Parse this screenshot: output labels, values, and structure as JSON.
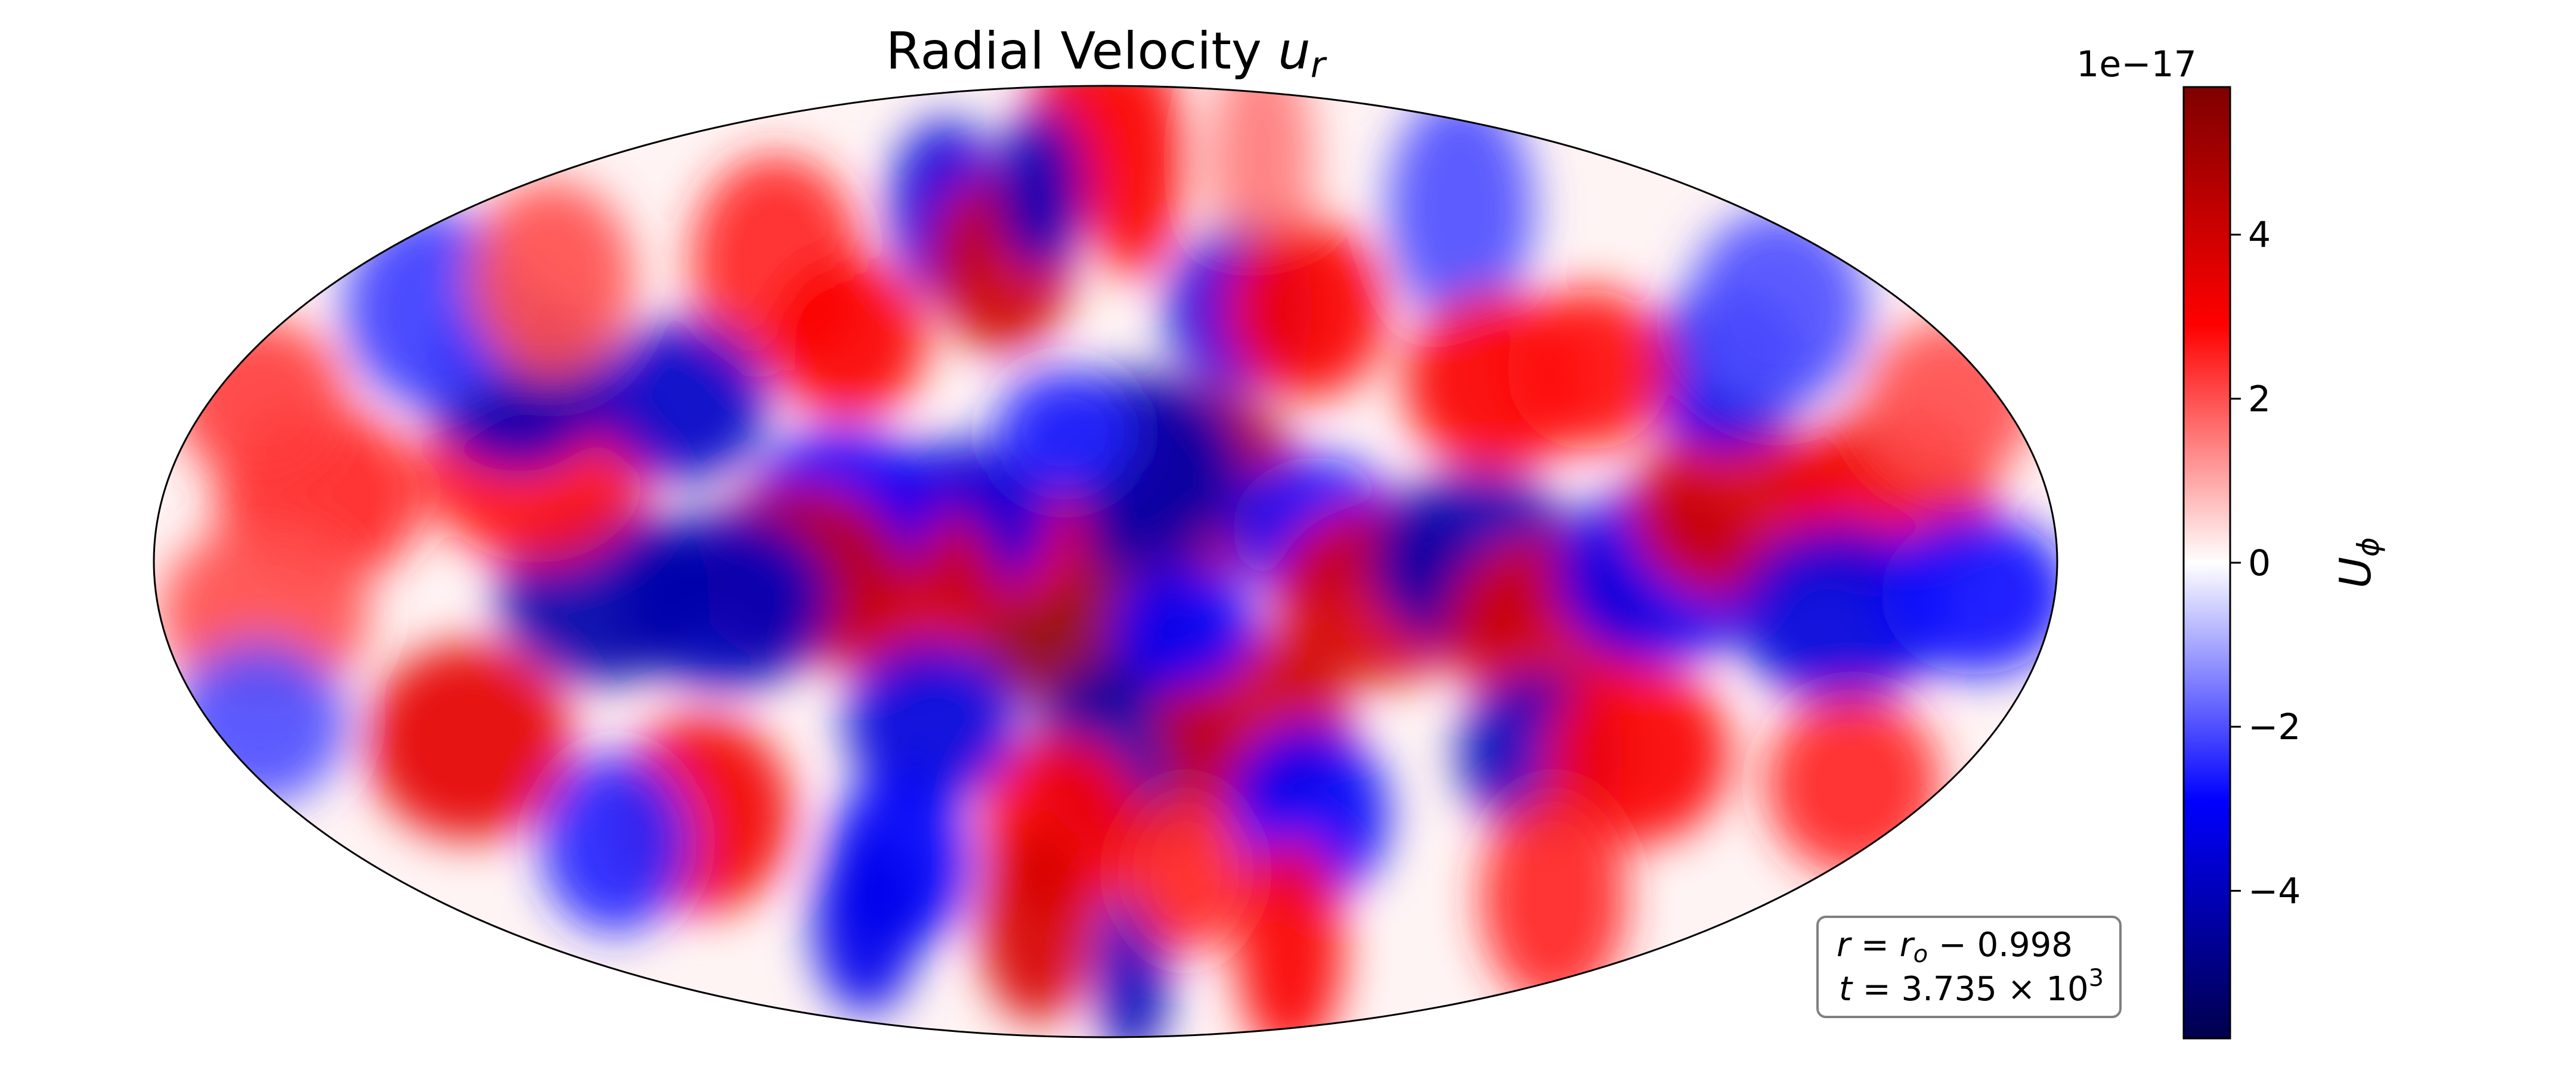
{
  "chart_data": {
    "type": "heatmap",
    "projection": "mollweide",
    "title": "Radial Velocity",
    "title_symbol": "u",
    "title_subscript": "r",
    "colormap": "seismic",
    "colormap_colors": [
      "#00004c",
      "#0000ff",
      "#ffffff",
      "#ff0000",
      "#7f0000"
    ],
    "colorbar": {
      "label": "U",
      "label_subscript": "ϕ",
      "scale_label": "1e−17",
      "vmin": -5.8,
      "vmax": 5.8,
      "ticks": [
        -4,
        -2,
        0,
        2,
        4
      ],
      "tick_labels": [
        "−4",
        "−2",
        "0",
        "2",
        "4"
      ]
    },
    "field_features": [
      {
        "lon": -4,
        "lat": -8,
        "value": 5.4,
        "size": 22
      },
      {
        "lon": 16,
        "lat": 12,
        "value": 4.6,
        "size": 22
      },
      {
        "lon": 5,
        "lat": 14,
        "value": -4.2,
        "size": 22
      },
      {
        "lon": 6,
        "lat": -30,
        "value": -4.4,
        "size": 22
      },
      {
        "lon": -20,
        "lat": 4,
        "value": 3.2,
        "size": 16
      },
      {
        "lon": -28,
        "lat": 6,
        "value": -3.4,
        "size": 18
      },
      {
        "lon": -40,
        "lat": -4,
        "value": 3.8,
        "size": 20
      },
      {
        "lon": -50,
        "lat": 8,
        "value": -3.0,
        "size": 18
      },
      {
        "lon": -58,
        "lat": -2,
        "value": 4.2,
        "size": 20
      },
      {
        "lon": -72,
        "lat": -6,
        "value": -4.0,
        "size": 20
      },
      {
        "lon": -95,
        "lat": -5,
        "value": -4.3,
        "size": 20
      },
      {
        "lon": -110,
        "lat": 15,
        "value": 2.8,
        "size": 22
      },
      {
        "lon": -120,
        "lat": 28,
        "value": -4.0,
        "size": 20
      },
      {
        "lon": -130,
        "lat": -28,
        "value": 3.5,
        "size": 22
      },
      {
        "lon": -150,
        "lat": 10,
        "value": 2.5,
        "size": 20
      },
      {
        "lon": -160,
        "lat": -8,
        "value": 2.0,
        "size": 20
      },
      {
        "lon": -80,
        "lat": 48,
        "value": 2.5,
        "size": 24
      },
      {
        "lon": -45,
        "lat": 58,
        "value": -3.5,
        "size": 20
      },
      {
        "lon": -25,
        "lat": 48,
        "value": 4.0,
        "size": 20
      },
      {
        "lon": -15,
        "lat": 75,
        "value": 3.2,
        "size": 22
      },
      {
        "lon": -20,
        "lat": 62,
        "value": -4.0,
        "size": 18
      },
      {
        "lon": 10,
        "lat": 68,
        "value": 3.0,
        "size": 26
      },
      {
        "lon": 55,
        "lat": 68,
        "value": 1.5,
        "size": 26
      },
      {
        "lon": 100,
        "lat": 58,
        "value": -2.0,
        "size": 26
      },
      {
        "lon": 30,
        "lat": 40,
        "value": -3.5,
        "size": 18
      },
      {
        "lon": 45,
        "lat": 40,
        "value": 3.0,
        "size": 20
      },
      {
        "lon": -55,
        "lat": 35,
        "value": 3.0,
        "size": 18
      },
      {
        "lon": -85,
        "lat": 25,
        "value": -3.8,
        "size": 18
      },
      {
        "lon": 40,
        "lat": 5,
        "value": -2.8,
        "size": 16
      },
      {
        "lon": 52,
        "lat": -5,
        "value": 3.8,
        "size": 20
      },
      {
        "lon": 70,
        "lat": 0,
        "value": -4.2,
        "size": 20
      },
      {
        "lon": 80,
        "lat": 28,
        "value": 3.0,
        "size": 20
      },
      {
        "lon": 85,
        "lat": -10,
        "value": 3.8,
        "size": 20
      },
      {
        "lon": 105,
        "lat": -2,
        "value": -3.2,
        "size": 20
      },
      {
        "lon": 120,
        "lat": 8,
        "value": 3.8,
        "size": 20
      },
      {
        "lon": 150,
        "lat": 10,
        "value": 3.2,
        "size": 20
      },
      {
        "lon": 140,
        "lat": -8,
        "value": -3.5,
        "size": 20
      },
      {
        "lon": 165,
        "lat": -5,
        "value": -2.8,
        "size": 18
      },
      {
        "lon": 128,
        "lat": 30,
        "value": -3.2,
        "size": 18
      },
      {
        "lon": 100,
        "lat": 30,
        "value": 2.8,
        "size": 18
      },
      {
        "lon": 90,
        "lat": -30,
        "value": -4.0,
        "size": 18
      },
      {
        "lon": 110,
        "lat": -30,
        "value": 3.0,
        "size": 20
      },
      {
        "lon": 30,
        "lat": -25,
        "value": 4.0,
        "size": 20
      },
      {
        "lon": 45,
        "lat": -40,
        "value": -3.0,
        "size": 20
      },
      {
        "lon": -10,
        "lat": -42,
        "value": 3.0,
        "size": 20
      },
      {
        "lon": -35,
        "lat": -25,
        "value": -3.5,
        "size": 18
      },
      {
        "lon": -50,
        "lat": -48,
        "value": -3.0,
        "size": 20
      },
      {
        "lon": -20,
        "lat": -60,
        "value": 3.8,
        "size": 22
      },
      {
        "lon": 10,
        "lat": -70,
        "value": -4.0,
        "size": 20
      },
      {
        "lon": 60,
        "lat": -65,
        "value": 3.0,
        "size": 24
      },
      {
        "lon": 120,
        "lat": -55,
        "value": 2.5,
        "size": 24
      },
      {
        "lon": -90,
        "lat": -40,
        "value": 3.2,
        "size": 22
      },
      {
        "lon": -70,
        "lat": -60,
        "value": -3.2,
        "size": 20
      },
      {
        "lon": 160,
        "lat": -35,
        "value": 2.5,
        "size": 20
      },
      {
        "lon": -150,
        "lat": 40,
        "value": -2.2,
        "size": 22
      },
      {
        "lon": 150,
        "lat": 40,
        "value": -2.0,
        "size": 22
      },
      {
        "lon": -130,
        "lat": 45,
        "value": 2.0,
        "size": 22
      },
      {
        "lon": 15,
        "lat": -10,
        "value": -3.0,
        "size": 14
      },
      {
        "lon": -8,
        "lat": 20,
        "value": -2.5,
        "size": 14
      },
      {
        "lon": 20,
        "lat": -50,
        "value": 2.5,
        "size": 18
      },
      {
        "lon": -115,
        "lat": -45,
        "value": -2.5,
        "size": 20
      },
      {
        "lon": 170,
        "lat": 25,
        "value": 2.0,
        "size": 18
      },
      {
        "lon": -170,
        "lat": 25,
        "value": 2.2,
        "size": 18
      },
      {
        "lon": -170,
        "lat": -25,
        "value": -2.0,
        "size": 18
      }
    ]
  },
  "annotation": {
    "line1": "r = r_o − 0.998",
    "line2": "t = 3.735 × 10^3",
    "t_mantissa": "3.735",
    "t_exponent": "3"
  }
}
